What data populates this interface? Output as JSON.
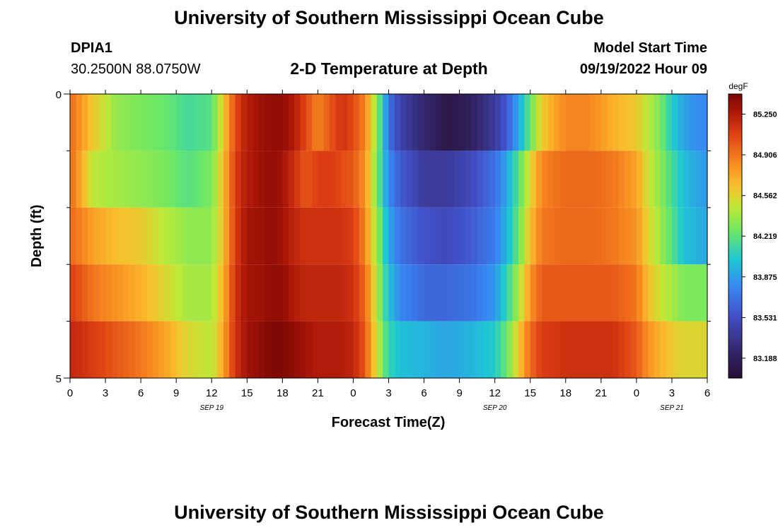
{
  "header": {
    "title": "University of Southern Mississippi Ocean Cube",
    "station": "DPIA1",
    "coords": "30.2500N  88.0750W",
    "subtitle": "2-D Temperature at Depth",
    "model_label": "Model Start Time",
    "model_time": "09/19/2022 Hour 09"
  },
  "footer": {
    "title": "University of Southern Mississippi Ocean Cube"
  },
  "chart_data": {
    "type": "heatmap",
    "title": "2-D Temperature at Depth",
    "xlabel": "Forecast Time(Z)",
    "ylabel": "Depth (ft)",
    "units": "degF",
    "xlim": [
      0,
      54
    ],
    "ylim": [
      0,
      5
    ],
    "y_inverted": true,
    "x_tick_labels": [
      "0",
      "3",
      "6",
      "9",
      "12",
      "15",
      "18",
      "21",
      "0",
      "3",
      "6",
      "9",
      "12",
      "15",
      "18",
      "21",
      "0",
      "3",
      "6"
    ],
    "x_ticks": [
      0,
      3,
      6,
      9,
      12,
      15,
      18,
      21,
      24,
      27,
      30,
      33,
      36,
      39,
      42,
      45,
      48,
      51,
      54
    ],
    "y_tick_labels": [
      "0",
      "5"
    ],
    "date_labels": [
      {
        "text": "SEP 19",
        "x": 12
      },
      {
        "text": "SEP 20",
        "x": 36
      },
      {
        "text": "SEP 21",
        "x": 51
      }
    ],
    "colorbar": {
      "label": "degF",
      "min": 83.02,
      "max": 85.42,
      "ticks": [
        "85.250",
        "84.906",
        "84.562",
        "84.219",
        "83.875",
        "83.531",
        "83.188"
      ],
      "tick_values": [
        85.25,
        84.906,
        84.562,
        84.219,
        83.875,
        83.531,
        83.188
      ]
    },
    "depth_bins": [
      0.5,
      1.5,
      2.5,
      3.5,
      4.5
    ],
    "time_keys": [
      0,
      2,
      4,
      6,
      8,
      10,
      12,
      13,
      14,
      15,
      16,
      17,
      18,
      19,
      20,
      21,
      22,
      23,
      24,
      25,
      25.5,
      26,
      26.5,
      27,
      28,
      30,
      32,
      34,
      36,
      37,
      38,
      39,
      40,
      42,
      44,
      46,
      48,
      49,
      50,
      51,
      52,
      53,
      54
    ],
    "key_values": [
      [
        84.95,
        84.6,
        84.35,
        84.3,
        84.25,
        84.15,
        84.2,
        84.6,
        85.05,
        85.25,
        85.3,
        85.35,
        85.35,
        85.25,
        85.05,
        84.85,
        85.0,
        85.15,
        85.05,
        84.85,
        84.6,
        84.35,
        84.05,
        83.7,
        83.45,
        83.25,
        83.1,
        83.2,
        83.4,
        83.6,
        83.9,
        84.25,
        84.6,
        84.85,
        84.85,
        84.7,
        84.6,
        84.45,
        84.3,
        84.05,
        83.9,
        83.8,
        83.8
      ],
      [
        84.95,
        84.45,
        84.4,
        84.35,
        84.3,
        84.2,
        84.3,
        84.65,
        85.1,
        85.25,
        85.3,
        85.35,
        85.3,
        85.15,
        85.0,
        85.1,
        85.1,
        85.05,
        85.0,
        84.8,
        84.55,
        84.3,
        84.05,
        83.8,
        83.6,
        83.4,
        83.4,
        83.5,
        83.7,
        83.9,
        84.2,
        84.55,
        84.85,
        84.95,
        84.95,
        84.9,
        84.75,
        84.5,
        84.35,
        84.15,
        84.0,
        83.9,
        83.85
      ],
      [
        84.95,
        84.75,
        84.65,
        84.6,
        84.45,
        84.35,
        84.35,
        84.65,
        85.1,
        85.3,
        85.3,
        85.35,
        85.3,
        85.2,
        85.15,
        85.15,
        85.15,
        85.15,
        85.1,
        84.85,
        84.6,
        84.4,
        84.15,
        83.9,
        83.7,
        83.55,
        83.5,
        83.6,
        83.75,
        83.95,
        84.25,
        84.65,
        84.9,
        84.95,
        84.95,
        84.9,
        84.8,
        84.55,
        84.4,
        84.2,
        84.0,
        83.95,
        83.9
      ],
      [
        85.1,
        84.9,
        84.8,
        84.7,
        84.55,
        84.4,
        84.4,
        84.7,
        85.15,
        85.3,
        85.3,
        85.35,
        85.35,
        85.25,
        85.2,
        85.2,
        85.2,
        85.2,
        85.15,
        84.95,
        84.7,
        84.45,
        84.2,
        84.0,
        83.8,
        83.65,
        83.65,
        83.7,
        83.85,
        84.1,
        84.4,
        84.8,
        85.0,
        85.0,
        85.0,
        85.0,
        84.9,
        84.65,
        84.5,
        84.4,
        84.3,
        84.3,
        84.3
      ],
      [
        85.2,
        85.1,
        85.0,
        84.9,
        84.75,
        84.55,
        84.45,
        84.75,
        85.15,
        85.3,
        85.35,
        85.4,
        85.4,
        85.35,
        85.3,
        85.25,
        85.25,
        85.25,
        85.2,
        85.0,
        84.75,
        84.5,
        84.3,
        84.1,
        84.0,
        83.95,
        83.9,
        83.95,
        84.05,
        84.25,
        84.6,
        84.95,
        85.1,
        85.15,
        85.15,
        85.15,
        85.0,
        84.8,
        84.7,
        84.6,
        84.55,
        84.55,
        84.55
      ]
    ]
  }
}
